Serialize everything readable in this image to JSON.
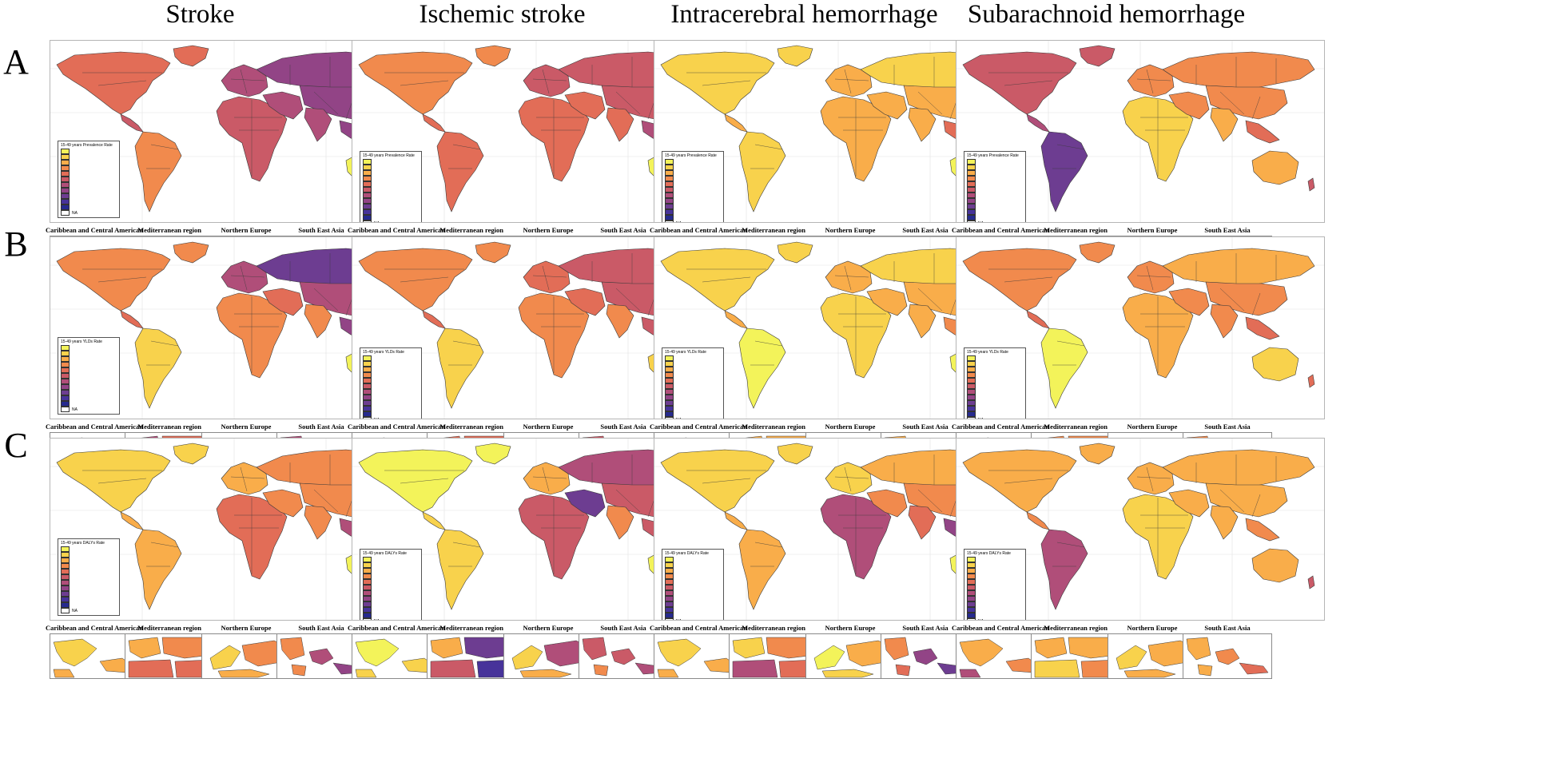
{
  "columns": [
    "Stroke",
    "Ischemic stroke",
    "Intracerebral hemorrhage",
    "Subarachnoid hemorrhage"
  ],
  "rows": [
    "A",
    "B",
    "C"
  ],
  "inset_titles": [
    "Caribbean and Central American",
    "Mediterranean region",
    "Northern Europe",
    "South East Asia"
  ],
  "legend_titles": {
    "A": "15-49 years Prevalence Rate",
    "B": "15-49 years YLDs Rate",
    "C": "15-49 years DALYs Rate"
  },
  "legend_na": "NA",
  "palette": [
    "#f3f35a",
    "#f8d24c",
    "#f9ad4a",
    "#f18a4d",
    "#e26d57",
    "#ca5a67",
    "#b04e79",
    "#924486",
    "#6d3d91",
    "#47339a",
    "#262a8e"
  ],
  "map_colors": {
    "A": [
      {
        "na": 4,
        "sa": 3,
        "eu": 6,
        "ru": 7,
        "af": 5,
        "me": 6,
        "asia": 7,
        "in": 6,
        "sea": 7,
        "au": 0
      },
      {
        "na": 3,
        "sa": 4,
        "eu": 5,
        "ru": 5,
        "af": 4,
        "me": 4,
        "asia": 5,
        "in": 4,
        "sea": 6,
        "au": 0
      },
      {
        "na": 1,
        "sa": 1,
        "eu": 2,
        "ru": 1,
        "af": 2,
        "me": 2,
        "asia": 2,
        "in": 2,
        "sea": 4,
        "au": 0
      },
      {
        "na": 5,
        "sa": 8,
        "eu": 3,
        "ru": 3,
        "af": 1,
        "me": 3,
        "asia": 3,
        "in": 2,
        "sea": 4,
        "au": 2
      }
    ],
    "B": [
      {
        "na": 3,
        "sa": 1,
        "eu": 6,
        "ru": 8,
        "af": 3,
        "me": 4,
        "asia": 6,
        "in": 3,
        "sea": 7,
        "au": 0
      },
      {
        "na": 3,
        "sa": 1,
        "eu": 4,
        "ru": 5,
        "af": 3,
        "me": 4,
        "asia": 5,
        "in": 3,
        "sea": 5,
        "au": 1
      },
      {
        "na": 1,
        "sa": 0,
        "eu": 2,
        "ru": 1,
        "af": 1,
        "me": 2,
        "asia": 2,
        "in": 2,
        "sea": 3,
        "au": 0
      },
      {
        "na": 3,
        "sa": 0,
        "eu": 3,
        "ru": 2,
        "af": 2,
        "me": 3,
        "asia": 3,
        "in": 3,
        "sea": 4,
        "au": 1
      }
    ],
    "C": [
      {
        "na": 1,
        "sa": 2,
        "eu": 2,
        "ru": 3,
        "af": 4,
        "me": 3,
        "asia": 3,
        "in": 3,
        "sea": 6,
        "au": 0
      },
      {
        "na": 0,
        "sa": 1,
        "eu": 2,
        "ru": 6,
        "af": 5,
        "me": 8,
        "asia": 5,
        "in": 3,
        "sea": 5,
        "au": 0
      },
      {
        "na": 1,
        "sa": 2,
        "eu": 1,
        "ru": 2,
        "af": 6,
        "me": 3,
        "asia": 3,
        "in": 4,
        "sea": 7,
        "au": 0
      },
      {
        "na": 2,
        "sa": 6,
        "eu": 2,
        "ru": 2,
        "af": 1,
        "me": 2,
        "asia": 2,
        "in": 2,
        "sea": 3,
        "au": 2
      }
    ]
  }
}
